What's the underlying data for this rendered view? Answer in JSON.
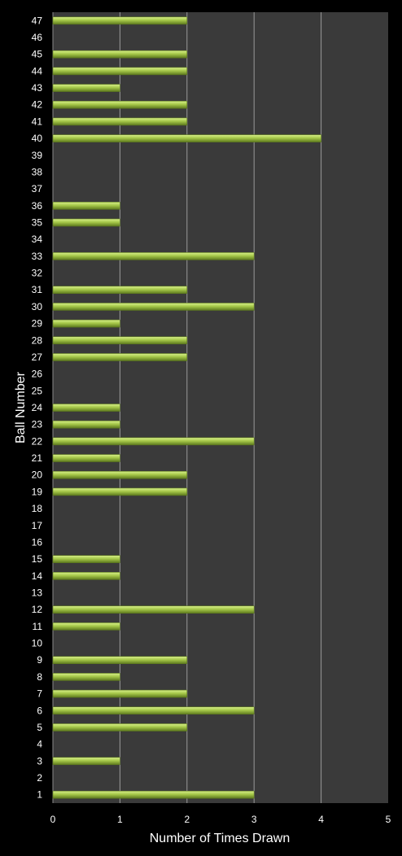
{
  "chart_data": {
    "type": "bar",
    "orientation": "horizontal",
    "title": "",
    "xlabel": "Number of Times Drawn",
    "ylabel": "Ball Number",
    "xlim": [
      0,
      5
    ],
    "xticks": [
      "0",
      "1",
      "2",
      "3",
      "4",
      "5"
    ],
    "grid": "vertical",
    "legend": "none",
    "categories": [
      "1",
      "2",
      "3",
      "4",
      "5",
      "6",
      "7",
      "8",
      "9",
      "10",
      "11",
      "12",
      "13",
      "14",
      "15",
      "16",
      "17",
      "18",
      "19",
      "20",
      "21",
      "22",
      "23",
      "24",
      "25",
      "26",
      "27",
      "28",
      "29",
      "30",
      "31",
      "32",
      "33",
      "34",
      "35",
      "36",
      "37",
      "38",
      "39",
      "40",
      "41",
      "42",
      "43",
      "44",
      "45",
      "46",
      "47"
    ],
    "values": [
      3,
      0,
      1,
      0,
      2,
      3,
      2,
      1,
      2,
      0,
      1,
      3,
      0,
      1,
      1,
      0,
      0,
      0,
      2,
      2,
      1,
      3,
      1,
      1,
      0,
      0,
      2,
      2,
      1,
      3,
      2,
      0,
      3,
      0,
      1,
      1,
      0,
      0,
      0,
      4,
      2,
      2,
      1,
      2,
      2,
      0,
      2
    ],
    "colors": {
      "background": "#000000",
      "plot_area": "#3a3a3a",
      "gridline": "#9a9a9a",
      "bar_light": "#d8f08a",
      "bar_mid": "#a6c84a",
      "bar_dark": "#5e7a1e",
      "text": "#ffffff"
    }
  }
}
